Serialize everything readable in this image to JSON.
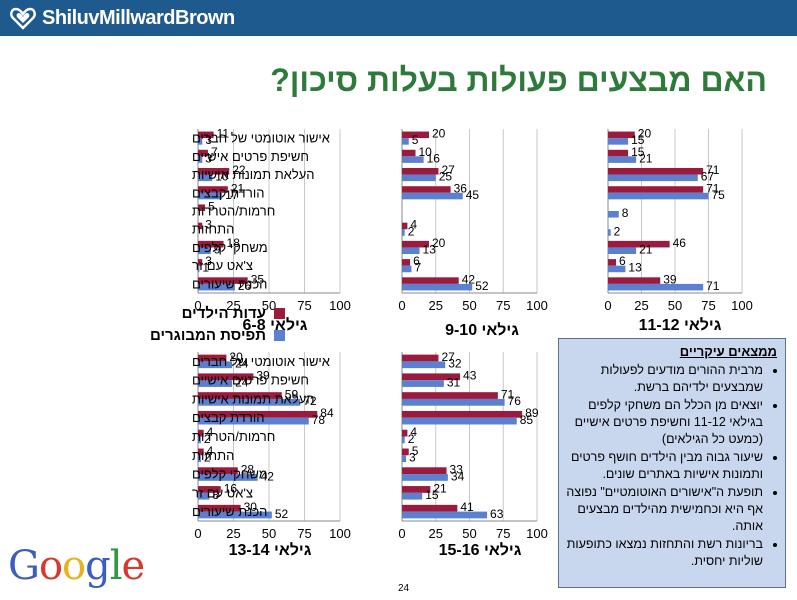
{
  "header": {
    "brand": "ShiluvMillwardBrown"
  },
  "title": "האם מבצעים פעולות בעלות סיכון?",
  "legend": {
    "children": "עדות הילדים",
    "parents": "תפיסת המבוגרים"
  },
  "colors": {
    "children": "#9b1b3f",
    "parents": "#5b80cf",
    "title": "#2d7a3a",
    "header": "#1f5a8f"
  },
  "categories": [
    "אישור אוטומטי של חברים",
    "חשיפת פרטים אישיים",
    "העלאת תמונות אישיות",
    "הורדת קבצים",
    "חרמות/הטרדות",
    "התחזות",
    "משחקי קלפים",
    "צ'אט עם זר",
    "הכנת שיעורים"
  ],
  "chart_data": [
    {
      "type": "bar",
      "title": "גילאי 6-8",
      "xlim": [
        0,
        100
      ],
      "ticks": [
        0,
        25,
        50,
        75,
        100
      ],
      "series": [
        {
          "name": "עדות הילדים",
          "values": [
            11,
            7,
            22,
            21,
            5,
            3,
            18,
            3,
            35
          ]
        },
        {
          "name": "תפיסת המבוגרים",
          "values": [
            3,
            3,
            10,
            17,
            null,
            null,
            9,
            1,
            26
          ]
        }
      ]
    },
    {
      "type": "bar",
      "title": "גילאי 9-10",
      "xlim": [
        0,
        100
      ],
      "ticks": [
        0,
        25,
        50,
        75,
        100
      ],
      "series": [
        {
          "name": "עדות הילדים",
          "values": [
            20,
            10,
            27,
            36,
            null,
            4,
            20,
            6,
            42
          ]
        },
        {
          "name": "תפיסת המבוגרים",
          "values": [
            5,
            16,
            25,
            45,
            null,
            2,
            13,
            7,
            52
          ]
        }
      ]
    },
    {
      "type": "bar",
      "title": "גילאי 11-12",
      "xlim": [
        0,
        100
      ],
      "ticks": [
        0,
        25,
        50,
        75,
        100
      ],
      "series": [
        {
          "name": "עדות הילדים",
          "values": [
            20,
            15,
            71,
            71,
            null,
            null,
            46,
            6,
            39
          ]
        },
        {
          "name": "תפיסת המבוגרים",
          "values": [
            15,
            21,
            67,
            75,
            8,
            2,
            21,
            13,
            71
          ]
        }
      ]
    },
    {
      "type": "bar",
      "title": "גילאי 13-14",
      "xlim": [
        0,
        100
      ],
      "ticks": [
        0,
        25,
        50,
        75,
        100
      ],
      "series": [
        {
          "name": "עדות הילדים",
          "values": [
            20,
            39,
            59,
            84,
            4,
            4,
            28,
            16,
            30
          ]
        },
        {
          "name": "תפיסת המבוגרים",
          "values": [
            24,
            24,
            72,
            78,
            2,
            2,
            42,
            8,
            52
          ]
        }
      ]
    },
    {
      "type": "bar",
      "title": "גילאי 15-16",
      "xlim": [
        0,
        100
      ],
      "ticks": [
        0,
        25,
        50,
        75,
        100
      ],
      "series": [
        {
          "name": "עדות הילדים",
          "values": [
            27,
            43,
            71,
            89,
            4,
            5,
            33,
            21,
            41
          ]
        },
        {
          "name": "תפיסת המבוגרים",
          "values": [
            32,
            31,
            76,
            85,
            2,
            3,
            34,
            15,
            63
          ]
        }
      ]
    }
  ],
  "findings": {
    "title": "ממצאים עיקריים",
    "items": [
      "מרבית ההורים מודעים לפעולות שמבצעים ילדיהם ברשת.",
      "יוצאים מן הכלל הם משחקי קלפים בגילאי 11-12 וחשיפת פרטים אישיים (כמעט כל הגילאים)",
      "שיעור גבוה מבין הילדים חושף פרטים ותמונות אישיות באתרים שונים.",
      "תופעת ה\"אישורים האוטומטיים\" נפוצה אף היא וכחמישית מהילדים מבצעים אותה.",
      "בריונות רשת והתחזות נמצאו כתופעות שוליות יחסית."
    ]
  },
  "footer": {
    "logo": "Google",
    "page": "24"
  }
}
